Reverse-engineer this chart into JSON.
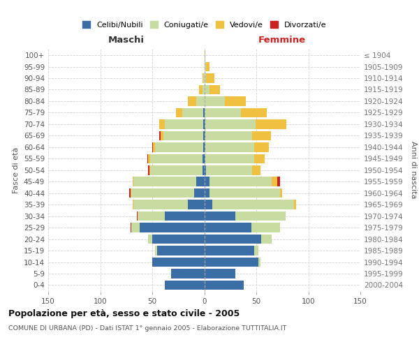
{
  "age_groups": [
    "0-4",
    "5-9",
    "10-14",
    "15-19",
    "20-24",
    "25-29",
    "30-34",
    "35-39",
    "40-44",
    "45-49",
    "50-54",
    "55-59",
    "60-64",
    "65-69",
    "70-74",
    "75-79",
    "80-84",
    "85-89",
    "90-94",
    "95-99",
    "100+"
  ],
  "birth_years": [
    "2000-2004",
    "1995-1999",
    "1990-1994",
    "1985-1989",
    "1980-1984",
    "1975-1979",
    "1970-1974",
    "1965-1969",
    "1960-1964",
    "1955-1959",
    "1950-1954",
    "1945-1949",
    "1940-1944",
    "1935-1939",
    "1930-1934",
    "1925-1929",
    "1920-1924",
    "1915-1919",
    "1910-1914",
    "1905-1909",
    "≤ 1904"
  ],
  "colors": {
    "celibi": "#3a6ea5",
    "coniugati": "#c8dba0",
    "vedovi": "#f0c040",
    "divorziati": "#cc2020"
  },
  "maschi_celibi": [
    38,
    32,
    50,
    45,
    50,
    62,
    38,
    16,
    10,
    8,
    2,
    2,
    1,
    1,
    1,
    1,
    0,
    0,
    0,
    0,
    0
  ],
  "maschi_coniugati": [
    0,
    0,
    0,
    2,
    4,
    8,
    26,
    52,
    60,
    60,
    50,
    50,
    46,
    38,
    37,
    20,
    8,
    2,
    1,
    0,
    0
  ],
  "maschi_vedovi": [
    0,
    0,
    0,
    0,
    0,
    0,
    0,
    1,
    1,
    1,
    1,
    2,
    2,
    3,
    5,
    6,
    8,
    3,
    1,
    0,
    0
  ],
  "maschi_divorziati": [
    0,
    0,
    0,
    0,
    0,
    1,
    1,
    0,
    1,
    0,
    1,
    1,
    1,
    1,
    0,
    0,
    0,
    0,
    0,
    0,
    0
  ],
  "femmine_celibi": [
    38,
    30,
    52,
    48,
    55,
    45,
    30,
    8,
    5,
    5,
    2,
    1,
    1,
    1,
    1,
    0,
    0,
    0,
    0,
    0,
    0
  ],
  "femmine_coniugati": [
    0,
    0,
    2,
    4,
    10,
    28,
    48,
    78,
    68,
    60,
    44,
    47,
    47,
    45,
    48,
    35,
    20,
    5,
    2,
    2,
    0
  ],
  "femmine_vedovi": [
    0,
    0,
    0,
    0,
    0,
    0,
    0,
    2,
    2,
    5,
    8,
    10,
    14,
    18,
    30,
    25,
    20,
    10,
    8,
    3,
    1
  ],
  "femmine_divorziati": [
    0,
    0,
    0,
    0,
    0,
    0,
    0,
    0,
    0,
    3,
    0,
    0,
    0,
    0,
    0,
    0,
    0,
    0,
    0,
    0,
    0
  ],
  "title": "Popolazione per età, sesso e stato civile - 2005",
  "subtitle": "COMUNE DI URBANA (PD) - Dati ISTAT 1° gennaio 2005 - Elaborazione TUTTITALIA.IT",
  "label_maschi": "Maschi",
  "label_femmine": "Femmine",
  "ylabel_left": "Fasce di età",
  "ylabel_right": "Anni di nascita",
  "legend_labels": [
    "Celibi/Nubili",
    "Coniugati/e",
    "Vedovi/e",
    "Divorzati/e"
  ],
  "xlim": 150,
  "bg_color": "#ffffff",
  "grid_color": "#cccccc"
}
